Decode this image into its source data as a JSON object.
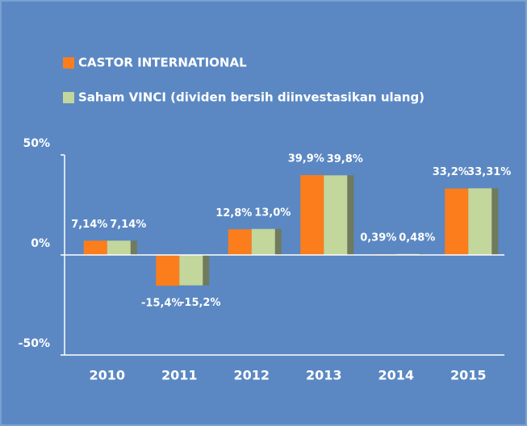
{
  "chart_data": {
    "type": "bar",
    "categories": [
      "2010",
      "2011",
      "2012",
      "2013",
      "2014",
      "2015"
    ],
    "series": [
      {
        "name": "CASTOR INTERNATIONAL",
        "color": "#fb7d1c",
        "values": [
          7.14,
          -15.4,
          12.8,
          39.9,
          0.39,
          33.2
        ],
        "value_labels": [
          "7,14%",
          "-15,4%",
          "12,8%",
          "39,9%",
          "0,39%",
          "33,2%"
        ]
      },
      {
        "name": "Saham VINCI (dividen bersih diinvestasikan ulang)",
        "color": "#c3d69b",
        "values": [
          7.14,
          -15.2,
          13.0,
          39.8,
          0.48,
          33.31
        ],
        "value_labels": [
          "7,14%",
          "-15,2%",
          "13,0%",
          "39,8%",
          "0,48%",
          "33,31%"
        ]
      }
    ],
    "ylim": [
      -50,
      50
    ],
    "yticks": [
      {
        "value": 50,
        "label": "50%"
      },
      {
        "value": 0,
        "label": "0%"
      },
      {
        "value": -50,
        "label": "-50%"
      }
    ]
  }
}
